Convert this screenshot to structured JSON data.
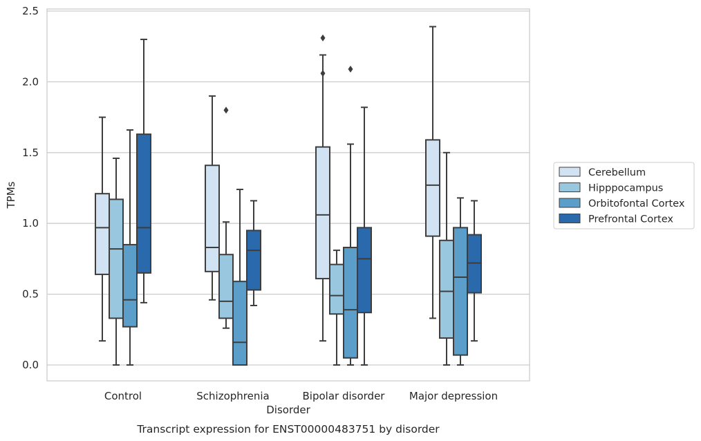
{
  "caption": "Transcript expression for ENST00000483751 by disorder",
  "chart_data": {
    "type": "box",
    "title": "",
    "xlabel": "Disorder",
    "ylabel": "TPMs",
    "ylim": [
      -0.12,
      2.52
    ],
    "yticks": [
      0.0,
      0.5,
      1.0,
      1.5,
      2.0,
      2.5
    ],
    "ytick_labels": [
      "0.0",
      "0.5",
      "1.0",
      "1.5",
      "2.0",
      "2.5"
    ],
    "grid": "horizontal",
    "legend_position": "right",
    "categories": [
      "Control",
      "Schizophrenia",
      "Bipolar disorder",
      "Major depression"
    ],
    "series": [
      {
        "name": "Cerebellum",
        "color": "#d1e2f3",
        "boxes": [
          {
            "whislo": 0.17,
            "q1": 0.64,
            "med": 0.97,
            "q3": 1.21,
            "whishi": 1.75,
            "fliers": []
          },
          {
            "whislo": 0.46,
            "q1": 0.66,
            "med": 0.83,
            "q3": 1.41,
            "whishi": 1.9,
            "fliers": []
          },
          {
            "whislo": 0.17,
            "q1": 0.61,
            "med": 1.06,
            "q3": 1.54,
            "whishi": 2.19,
            "fliers": [
              2.31,
              2.06
            ]
          },
          {
            "whislo": 0.33,
            "q1": 0.91,
            "med": 1.27,
            "q3": 1.59,
            "whishi": 2.39,
            "fliers": []
          }
        ]
      },
      {
        "name": "Hipppocampus",
        "color": "#9ac7e0",
        "boxes": [
          {
            "whislo": 0.0,
            "q1": 0.33,
            "med": 0.82,
            "q3": 1.17,
            "whishi": 1.46,
            "fliers": []
          },
          {
            "whislo": 0.26,
            "q1": 0.33,
            "med": 0.45,
            "q3": 0.78,
            "whishi": 1.01,
            "fliers": [
              1.8
            ]
          },
          {
            "whislo": 0.0,
            "q1": 0.36,
            "med": 0.49,
            "q3": 0.71,
            "whishi": 0.81,
            "fliers": []
          },
          {
            "whislo": 0.0,
            "q1": 0.19,
            "med": 0.52,
            "q3": 0.88,
            "whishi": 1.5,
            "fliers": []
          }
        ]
      },
      {
        "name": "Orbitofontal Cortex",
        "color": "#5b9ec9",
        "boxes": [
          {
            "whislo": 0.0,
            "q1": 0.27,
            "med": 0.46,
            "q3": 0.85,
            "whishi": 1.66,
            "fliers": []
          },
          {
            "whislo": 0.0,
            "q1": 0.0,
            "med": 0.16,
            "q3": 0.59,
            "whishi": 1.24,
            "fliers": []
          },
          {
            "whislo": 0.0,
            "q1": 0.05,
            "med": 0.39,
            "q3": 0.83,
            "whishi": 1.56,
            "fliers": [
              2.09
            ]
          },
          {
            "whislo": 0.0,
            "q1": 0.07,
            "med": 0.62,
            "q3": 0.97,
            "whishi": 1.18,
            "fliers": []
          }
        ]
      },
      {
        "name": "Prefrontal Cortex",
        "color": "#2a69ac",
        "boxes": [
          {
            "whislo": 0.44,
            "q1": 0.65,
            "med": 0.97,
            "q3": 1.63,
            "whishi": 2.3,
            "fliers": []
          },
          {
            "whislo": 0.42,
            "q1": 0.53,
            "med": 0.81,
            "q3": 0.95,
            "whishi": 1.16,
            "fliers": []
          },
          {
            "whislo": 0.0,
            "q1": 0.37,
            "med": 0.75,
            "q3": 0.97,
            "whishi": 1.82,
            "fliers": []
          },
          {
            "whislo": 0.17,
            "q1": 0.51,
            "med": 0.72,
            "q3": 0.92,
            "whishi": 1.16,
            "fliers": []
          }
        ]
      }
    ]
  }
}
